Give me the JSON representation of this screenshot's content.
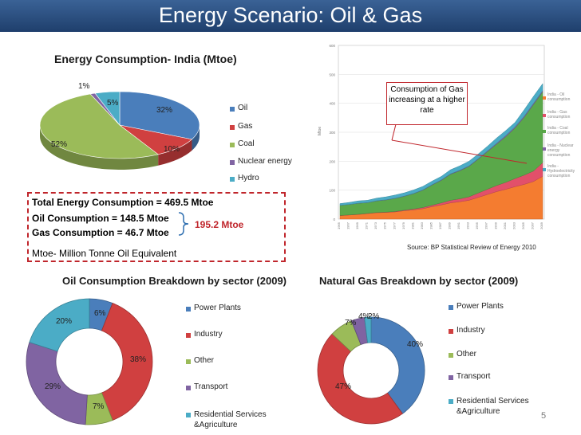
{
  "slide": {
    "title": "Energy Scenario: Oil & Gas",
    "page_number": "5"
  },
  "colors": {
    "oil": "#4a7ebb",
    "gas": "#d04040",
    "coal": "#9bbb59",
    "nuclear": "#8064a2",
    "hydro": "#4bacc6"
  },
  "totals": {
    "total": "Total Energy Consumption = 469.5 Mtoe",
    "oil": "Oil Consumption = 148.5 Mtoe",
    "gas": "Gas Consumption = 46.7 Mtoe",
    "sum": "195.2 Mtoe",
    "unit_note": "Mtoe- Million Tonne Oil Equivalent"
  },
  "source": "Source: BP Statistical Review of Energy 2010",
  "annotation": "Consumption of Gas increasing at a higher rate",
  "chart_data": [
    {
      "type": "pie",
      "title": "Energy Consumption- India (Mtoe)",
      "categories": [
        "Oil",
        "Gas",
        "Coal",
        "Nuclear energy",
        "Hydro"
      ],
      "values": [
        32,
        10,
        52,
        1,
        5
      ],
      "data_labels": [
        "32%",
        "10%",
        "52%",
        "1%",
        "5%"
      ],
      "legend": "right"
    },
    {
      "type": "area",
      "ylabel": "Mtoe",
      "x": [
        "1965",
        "1967",
        "1969",
        "1971",
        "1973",
        "1975",
        "1977",
        "1979",
        "1981",
        "1983",
        "1985",
        "1987",
        "1989",
        "1991",
        "1993",
        "1995",
        "1997",
        "1999",
        "2001",
        "2003",
        "2005",
        "2007",
        "2009"
      ],
      "ylim": [
        0,
        600
      ],
      "yticks": [
        "0",
        "100",
        "200",
        "300",
        "400",
        "500",
        "600"
      ],
      "series": [
        {
          "name": "India - Oil consumption",
          "values": [
            12,
            14,
            16,
            19,
            22,
            23,
            25,
            29,
            32,
            36,
            43,
            49,
            56,
            60,
            65,
            75,
            85,
            95,
            103,
            112,
            120,
            130,
            148
          ]
        },
        {
          "name": "India - Gas consumption",
          "values": [
            0.5,
            0.6,
            0.7,
            0.8,
            1,
            1.2,
            1.5,
            2,
            3,
            4,
            5,
            7,
            9,
            10,
            12,
            15,
            18,
            21,
            24,
            28,
            32,
            36,
            47
          ]
        },
        {
          "name": "India - Coal consumption",
          "values": [
            35,
            36,
            38,
            37,
            40,
            42,
            45,
            48,
            53,
            60,
            70,
            78,
            90,
            97,
            105,
            117,
            130,
            143,
            158,
            175,
            200,
            230,
            245
          ]
        },
        {
          "name": "India - Nuclear energy consumption",
          "values": [
            0,
            0,
            0.2,
            0.3,
            0.5,
            0.6,
            0.7,
            0.8,
            0.8,
            1,
            1.2,
            1.5,
            1.5,
            1.8,
            1.8,
            1.8,
            2.5,
            3,
            4,
            4,
            4,
            4,
            4
          ]
        },
        {
          "name": "India - Hydroelectricity consumption",
          "values": [
            6,
            7,
            8,
            8,
            9,
            10,
            11,
            11,
            12,
            12,
            12,
            12,
            14,
            15,
            16,
            16,
            16,
            18,
            17,
            15,
            22,
            24,
            24
          ]
        }
      ],
      "legend": "right"
    },
    {
      "type": "pie",
      "subtype": "doughnut",
      "title": "Oil Consumption Breakdown by sector (2009)",
      "categories": [
        "Power Plants",
        "Industry",
        "Other",
        "Transport",
        "Residential Services &Agriculture"
      ],
      "values": [
        6,
        38,
        7,
        29,
        20
      ],
      "data_labels": [
        "6%",
        "38%",
        "7%",
        "29%",
        "20%"
      ],
      "legend": "right"
    },
    {
      "type": "pie",
      "subtype": "doughnut",
      "title": "Natural Gas Breakdown by sector (2009)",
      "categories": [
        "Power Plants",
        "Industry",
        "Other",
        "Transport",
        "Residential Services &Agriculture"
      ],
      "values": [
        40,
        47,
        7,
        4,
        2
      ],
      "data_labels": [
        "40%",
        "47%",
        "7%",
        "4%",
        "2%"
      ],
      "legend": "right"
    }
  ]
}
